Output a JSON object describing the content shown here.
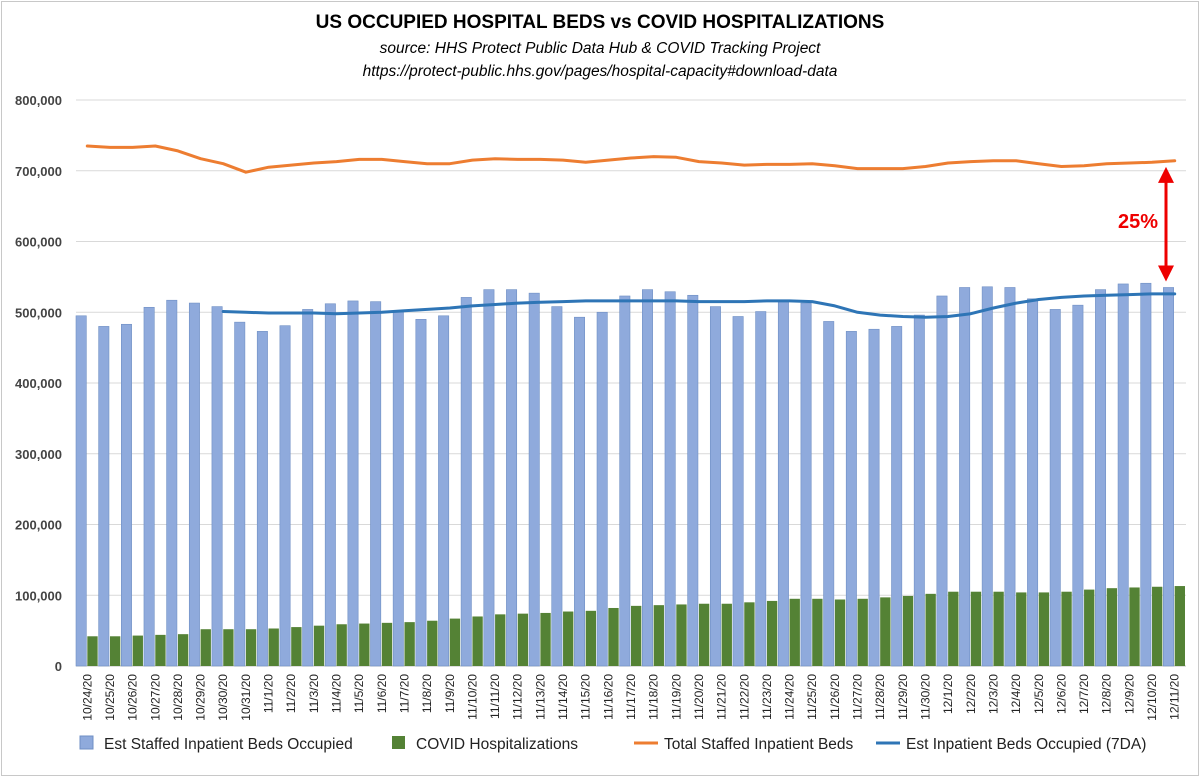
{
  "chart_data": {
    "type": "bar",
    "title": "US OCCUPIED HOSPITAL BEDS vs COVID HOSPITALIZATIONS",
    "subtitle": "source: HHS Protect Public Data Hub & COVID Tracking Project",
    "source_url": "https://protect-public.hhs.gov/pages/hospital-capacity#download-data",
    "ylim": [
      0,
      800000
    ],
    "yticks": [
      "0",
      "100,000",
      "200,000",
      "300,000",
      "400,000",
      "500,000",
      "600,000",
      "700,000",
      "800,000"
    ],
    "grid": true,
    "legend_placement": "bottom",
    "annotation": "25%",
    "categories": [
      "10/24/20",
      "10/25/20",
      "10/26/20",
      "10/27/20",
      "10/28/20",
      "10/29/20",
      "10/30/20",
      "10/31/20",
      "11/1/20",
      "11/2/20",
      "11/3/20",
      "11/4/20",
      "11/5/20",
      "11/6/20",
      "11/7/20",
      "11/8/20",
      "11/9/20",
      "11/10/20",
      "11/11/20",
      "11/12/20",
      "11/13/20",
      "11/14/20",
      "11/15/20",
      "11/16/20",
      "11/17/20",
      "11/18/20",
      "11/19/20",
      "11/20/20",
      "11/21/20",
      "11/22/20",
      "11/23/20",
      "11/24/20",
      "11/25/20",
      "11/26/20",
      "11/27/20",
      "11/28/20",
      "11/29/20",
      "11/30/20",
      "12/1/20",
      "12/2/20",
      "12/3/20",
      "12/4/20",
      "12/5/20",
      "12/6/20",
      "12/7/20",
      "12/8/20",
      "12/9/20",
      "12/10/20",
      "12/11/20"
    ],
    "series": [
      {
        "name": "Est Staffed Inpatient Beds Occupied",
        "kind": "bar",
        "color": "#8faadc",
        "values": [
          495000,
          480000,
          483000,
          507000,
          517000,
          513000,
          508000,
          486000,
          473000,
          481000,
          504000,
          512000,
          516000,
          515000,
          500000,
          490000,
          495000,
          521000,
          532000,
          532000,
          527000,
          508000,
          493000,
          500000,
          523000,
          532000,
          529000,
          524000,
          508000,
          494000,
          501000,
          516000,
          513000,
          487000,
          473000,
          476000,
          480000,
          496000,
          523000,
          535000,
          536000,
          535000,
          519000,
          504000,
          510000,
          532000,
          540000,
          541000,
          535000
        ]
      },
      {
        "name": "COVID Hospitalizations",
        "kind": "bar",
        "color": "#548235",
        "values": [
          42000,
          42000,
          43000,
          44000,
          45000,
          52000,
          52000,
          52000,
          53000,
          55000,
          57000,
          59000,
          60000,
          61000,
          62000,
          64000,
          67000,
          70000,
          73000,
          74000,
          75000,
          77000,
          78000,
          82000,
          85000,
          86000,
          87000,
          88000,
          88000,
          90000,
          92000,
          95000,
          95000,
          94000,
          95000,
          97000,
          99000,
          102000,
          105000,
          105000,
          105000,
          104000,
          104000,
          105000,
          108000,
          110000,
          111000,
          112000,
          113000
        ]
      },
      {
        "name": "Total Staffed Inpatient Beds",
        "kind": "line",
        "color": "#ed7d31",
        "values": [
          735000,
          733000,
          733000,
          735000,
          728000,
          717000,
          710000,
          698000,
          705000,
          708000,
          711000,
          713000,
          716000,
          716000,
          713000,
          710000,
          710000,
          715000,
          717000,
          716000,
          716000,
          715000,
          712000,
          715000,
          718000,
          720000,
          719000,
          713000,
          711000,
          708000,
          709000,
          709000,
          710000,
          707000,
          703000,
          703000,
          703000,
          706000,
          711000,
          713000,
          714000,
          714000,
          710000,
          706000,
          707000,
          710000,
          711000,
          712000,
          714000
        ]
      },
      {
        "name": "Est Inpatient Beds Occupied (7DA)",
        "kind": "line",
        "color": "#2e75b6",
        "values": [
          null,
          null,
          null,
          null,
          null,
          null,
          501000,
          500000,
          499000,
          499000,
          499000,
          498000,
          499000,
          500000,
          502000,
          504000,
          506000,
          509000,
          511000,
          513000,
          514000,
          515000,
          516000,
          516000,
          516000,
          516000,
          516000,
          515000,
          515000,
          515000,
          516000,
          516000,
          515000,
          509000,
          500000,
          496000,
          494000,
          493000,
          494000,
          498000,
          506000,
          513000,
          518000,
          521000,
          523000,
          524000,
          525000,
          526000,
          526000
        ]
      }
    ]
  }
}
